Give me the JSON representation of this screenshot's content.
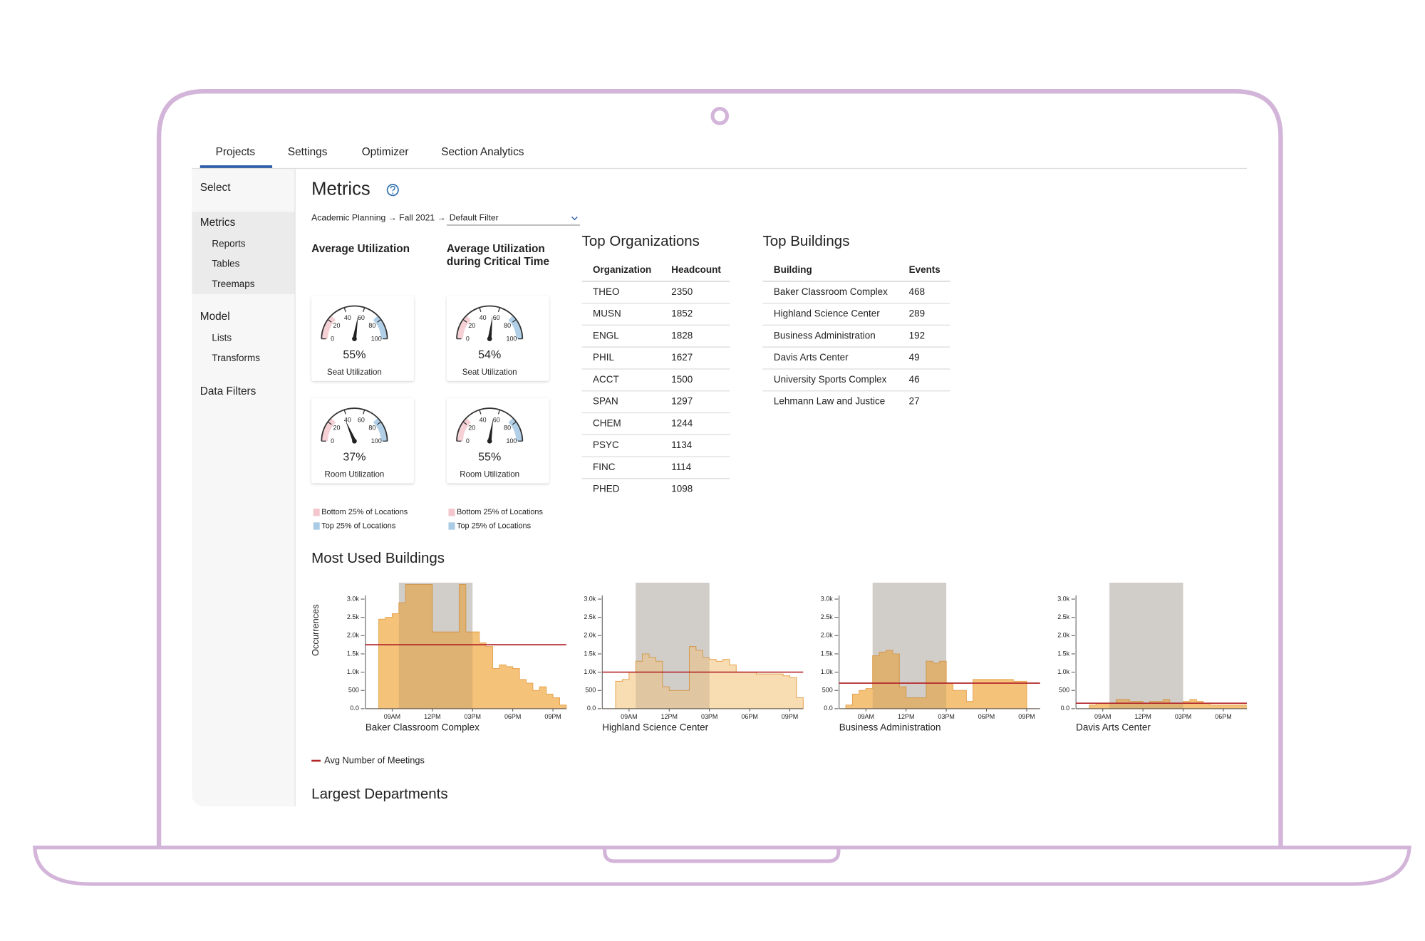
{
  "tabs": [
    "Projects",
    "Settings",
    "Optimizer",
    "Section Analytics"
  ],
  "sidebar": [
    {
      "title": "Select",
      "items": []
    },
    {
      "title": "Metrics",
      "items": [
        "Reports",
        "Tables",
        "Treemaps"
      ]
    },
    {
      "title": "Model",
      "items": [
        "Lists",
        "Transforms"
      ]
    },
    {
      "title": "Data Filters",
      "items": []
    }
  ],
  "page": {
    "title": "Metrics",
    "breadcrumb": "Academic Planning → Fall 2021 →",
    "filter": "Default Filter"
  },
  "utilization": {
    "gauge_ticks": [
      0,
      20,
      40,
      60,
      80,
      100
    ],
    "columns": [
      {
        "title_lines": [
          "Average Utilization"
        ],
        "gauges": [
          {
            "value": 55,
            "value_label": "55%",
            "label": "Seat Utilization"
          },
          {
            "value": 37,
            "value_label": "37%",
            "label": "Room Utilization"
          }
        ],
        "legend": [
          {
            "name": "Bottom 25% of Locations",
            "color": "#f3c5cc"
          },
          {
            "name": "Top 25% of Locations",
            "color": "#a9cbe6"
          }
        ]
      },
      {
        "title_lines": [
          "Average Utilization",
          "during Critical Time"
        ],
        "gauges": [
          {
            "value": 54,
            "value_label": "54%",
            "label": "Seat Utilization"
          },
          {
            "value": 55,
            "value_label": "55%",
            "label": "Room Utilization"
          }
        ],
        "legend": [
          {
            "name": "Bottom 25% of Locations",
            "color": "#f3c5cc"
          },
          {
            "name": "Top 25% of Locations",
            "color": "#a9cbe6"
          }
        ]
      }
    ]
  },
  "top_organizations": {
    "title": "Top Organizations",
    "columns": [
      "Organization",
      "Headcount"
    ],
    "rows": [
      [
        "THEO",
        2350
      ],
      [
        "MUSN",
        1852
      ],
      [
        "ENGL",
        1828
      ],
      [
        "PHIL",
        1627
      ],
      [
        "ACCT",
        1500
      ],
      [
        "SPAN",
        1297
      ],
      [
        "CHEM",
        1244
      ],
      [
        "PSYC",
        1134
      ],
      [
        "FINC",
        1114
      ],
      [
        "PHED",
        1098
      ]
    ]
  },
  "top_buildings": {
    "title": "Top Buildings",
    "columns": [
      "Building",
      "Events"
    ],
    "rows": [
      [
        "Baker Classroom Complex",
        468
      ],
      [
        "Highland Science Center",
        289
      ],
      [
        "Business Administration",
        192
      ],
      [
        "Davis Arts Center",
        49
      ],
      [
        "University Sports Complex",
        46
      ],
      [
        "Lehmann Law and Justice",
        27
      ]
    ]
  },
  "most_used_buildings": {
    "title": "Most Used Buildings",
    "y_label": "Occurrences",
    "ylim": [
      0,
      3450
    ],
    "yticks": [
      {
        "value": 0,
        "label": "0.0"
      },
      500,
      {
        "value": 1000,
        "label": "1.0k"
      },
      {
        "value": 1500,
        "label": "1.5k"
      },
      {
        "value": 2000,
        "label": "2.0k"
      },
      {
        "value": 2500,
        "label": "2.5k"
      },
      {
        "value": 3000,
        "label": "3.0k"
      }
    ],
    "xlim": [
      7,
      22
    ],
    "xticks": [
      {
        "value": 9,
        "label": "09AM"
      },
      {
        "value": 12,
        "label": "12PM"
      },
      {
        "value": 15,
        "label": "03PM"
      },
      {
        "value": 18,
        "label": "06PM"
      },
      {
        "value": 21,
        "label": "09PM"
      }
    ],
    "critical_window": [
      9.5,
      15
    ],
    "x": [
      7,
      7.5,
      8,
      8.5,
      9,
      9.5,
      10,
      10.5,
      11,
      11.5,
      12,
      12.5,
      13,
      13.5,
      14,
      14.5,
      15,
      15.5,
      16,
      16.5,
      17,
      17.5,
      18,
      18.5,
      19,
      19.5,
      20,
      20.5,
      21,
      21.5
    ],
    "avg_legend": "Avg Number of Meetings",
    "avg_color": "#b3262a",
    "charts": [
      {
        "name": "Baker Classroom Complex",
        "color": "#f5c27a",
        "avg": 1750,
        "values": [
          0,
          0,
          2450,
          2500,
          2600,
          2900,
          3400,
          3400,
          3400,
          3400,
          2100,
          2100,
          2100,
          2100,
          3400,
          2100,
          2100,
          1800,
          1700,
          1100,
          1200,
          1150,
          1100,
          800,
          700,
          500,
          600,
          400,
          300,
          100
        ]
      },
      {
        "name": "Highland Science Center",
        "color": "#f8dcb2",
        "avg": 1000,
        "values": [
          0,
          0,
          750,
          800,
          1000,
          1300,
          1500,
          1400,
          1300,
          600,
          500,
          500,
          500,
          1700,
          1600,
          1400,
          1350,
          1300,
          1350,
          1200,
          1000,
          1000,
          1000,
          950,
          950,
          950,
          950,
          900,
          850,
          300
        ]
      },
      {
        "name": "Business Administration",
        "color": "#f5c27a",
        "avg": 700,
        "values": [
          0,
          100,
          400,
          500,
          550,
          1450,
          1550,
          1600,
          1500,
          600,
          300,
          300,
          300,
          1300,
          1250,
          1300,
          700,
          500,
          500,
          200,
          800,
          800,
          800,
          800,
          800,
          800,
          750,
          750,
          0,
          0
        ]
      },
      {
        "name": "Davis Arts Center",
        "color": "#f5c27a",
        "avg": 150,
        "values": [
          0,
          0,
          100,
          150,
          150,
          150,
          250,
          250,
          200,
          200,
          150,
          200,
          200,
          250,
          150,
          150,
          200,
          250,
          200,
          150,
          100,
          100,
          100,
          100,
          100,
          100,
          100,
          100,
          50,
          0
        ]
      }
    ]
  },
  "next_section": "Largest Departments"
}
